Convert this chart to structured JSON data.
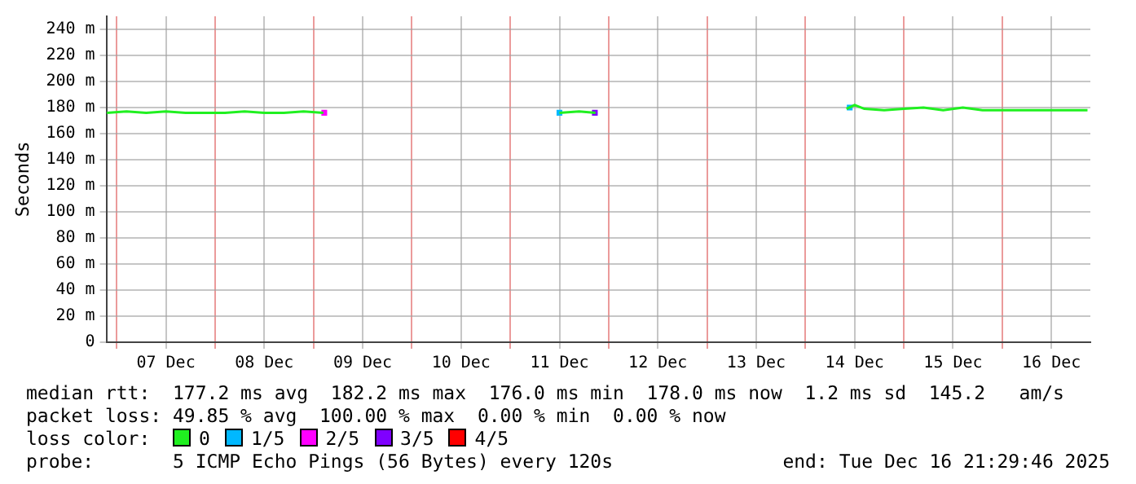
{
  "chart_data": {
    "type": "line",
    "ylabel": "Seconds",
    "legend_title": "loss color:",
    "legend": "bottom",
    "grid": true,
    "line_style": "solid",
    "xlim": [
      "2025-12-06T21:30",
      "2025-12-16T21:30"
    ],
    "ylim": [
      0,
      250
    ],
    "xticks": [
      {
        "value": "2025-12-07T00:00",
        "label": null
      },
      {
        "value": "2025-12-07T12:00",
        "label": "07 Dec"
      },
      {
        "value": "2025-12-08T00:00",
        "label": null
      },
      {
        "value": "2025-12-08T12:00",
        "label": "08 Dec"
      },
      {
        "value": "2025-12-09T00:00",
        "label": null
      },
      {
        "value": "2025-12-09T12:00",
        "label": "09 Dec"
      },
      {
        "value": "2025-12-10T00:00",
        "label": null
      },
      {
        "value": "2025-12-10T12:00",
        "label": "10 Dec"
      },
      {
        "value": "2025-12-11T00:00",
        "label": null
      },
      {
        "value": "2025-12-11T12:00",
        "label": "11 Dec"
      },
      {
        "value": "2025-12-12T00:00",
        "label": null
      },
      {
        "value": "2025-12-12T12:00",
        "label": "12 Dec"
      },
      {
        "value": "2025-12-13T00:00",
        "label": null
      },
      {
        "value": "2025-12-13T12:00",
        "label": "13 Dec"
      },
      {
        "value": "2025-12-14T00:00",
        "label": null
      },
      {
        "value": "2025-12-14T12:00",
        "label": "14 Dec"
      },
      {
        "value": "2025-12-15T00:00",
        "label": null
      },
      {
        "value": "2025-12-15T12:00",
        "label": "15 Dec"
      },
      {
        "value": "2025-12-16T00:00",
        "label": null
      },
      {
        "value": "2025-12-16T12:00",
        "label": "16 Dec"
      }
    ],
    "yticks": [
      0,
      {
        "value": 20,
        "label": "20 m"
      },
      {
        "value": 40,
        "label": "40 m"
      },
      {
        "value": 60,
        "label": "60 m"
      },
      {
        "value": 80,
        "label": "80 m"
      },
      {
        "value": 100,
        "label": "100 m"
      },
      {
        "value": 120,
        "label": "120 m"
      },
      {
        "value": 140,
        "label": "140 m"
      },
      {
        "value": 160,
        "label": "160 m"
      },
      {
        "value": 180,
        "label": "180 m"
      },
      {
        "value": 200,
        "label": "200 m"
      },
      {
        "value": 220,
        "label": "220 m"
      },
      {
        "value": 240,
        "label": "240 m"
      }
    ],
    "series": [
      {
        "name": "0",
        "color": "#20f020",
        "x": [
          "2025-12-06T21:36",
          "2025-12-07T02:24",
          "2025-12-07T07:12",
          "2025-12-07T12:00",
          "2025-12-07T16:48",
          "2025-12-07T21:36",
          "2025-12-08T02:24",
          "2025-12-08T07:12",
          "2025-12-08T12:00",
          "2025-12-08T16:48",
          "2025-12-08T21:36",
          "2025-12-09T02:24",
          "2025-12-09T04:48",
          "2025-12-11T12:00",
          "2025-12-11T16:48",
          "2025-12-11T20:48",
          "2025-12-12T00:00",
          "2025-12-14T10:00",
          "2025-12-14T12:00",
          "2025-12-14T14:24",
          "2025-12-14T19:12",
          "2025-12-15T00:00",
          "2025-12-15T04:48",
          "2025-12-15T09:36",
          "2025-12-15T14:24",
          "2025-12-15T19:12",
          "2025-12-16T00:00",
          "2025-12-16T04:48",
          "2025-12-16T09:36",
          "2025-12-16T14:24",
          "2025-12-16T20:48"
        ],
        "values": [
          176,
          177,
          176,
          177,
          176,
          176,
          176,
          177,
          176,
          176,
          177,
          176,
          null,
          176,
          177,
          176,
          null,
          179,
          182,
          179,
          178,
          179,
          180,
          178,
          180,
          178,
          178,
          178,
          178,
          178,
          178
        ]
      },
      {
        "name": "1/5",
        "color": "#00b8ff",
        "type": "scatter",
        "marker": "square",
        "x": [
          "2025-12-11T12:00",
          "2025-12-14T10:48"
        ],
        "values": [
          176,
          180
        ]
      },
      {
        "name": "2/5",
        "color": "#ff00ff",
        "type": "scatter",
        "marker": "square",
        "x": [
          "2025-12-09T02:38"
        ],
        "values": [
          176
        ]
      },
      {
        "name": "3/5",
        "color": "#7f00ff",
        "type": "scatter",
        "marker": "square",
        "x": [
          "2025-12-11T20:38"
        ],
        "values": [
          176
        ]
      },
      {
        "name": "4/5",
        "color": "#ff0000",
        "type": "scatter",
        "marker": "square"
      }
    ],
    "annotations": [
      "median rtt:  177.2 ms avg  182.2 ms max  176.0 ms min  178.0 ms now  1.2 ms sd  145.2   am/s",
      "packet loss: 49.85 % avg  100.00 % max  0.00 % min  0.00 % now",
      "probe:       5 ICMP Echo Pings (56 Bytes) every 120s",
      "end: Tue Dec 16 21:29:46 2025"
    ]
  }
}
